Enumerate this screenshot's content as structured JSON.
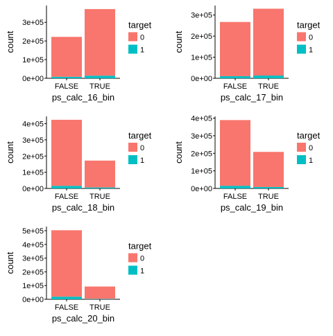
{
  "chart_data": [
    {
      "type": "bar",
      "stacked": true,
      "xlabel": "ps_calc_16_bin",
      "ylabel": "count",
      "categories": [
        "FALSE",
        "TRUE"
      ],
      "series": [
        {
          "name": "0",
          "color": "#F8766D",
          "values": [
            214000,
            357000
          ]
        },
        {
          "name": "1",
          "color": "#00BFC4",
          "values": [
            8000,
            14000
          ]
        }
      ],
      "yticks": [
        0,
        100000,
        200000,
        300000
      ],
      "ytick_labels": [
        "0e+00",
        "1e+05",
        "2e+05",
        "3e+05"
      ],
      "ylim": [
        0,
        390000
      ],
      "legend": {
        "title": "target",
        "position": "right"
      }
    },
    {
      "type": "bar",
      "stacked": true,
      "xlabel": "ps_calc_17_bin",
      "ylabel": "count",
      "categories": [
        "FALSE",
        "TRUE"
      ],
      "series": [
        {
          "name": "0",
          "color": "#F8766D",
          "values": [
            257000,
            317000
          ]
        },
        {
          "name": "1",
          "color": "#00BFC4",
          "values": [
            10000,
            13000
          ]
        }
      ],
      "yticks": [
        0,
        100000,
        200000,
        300000
      ],
      "ytick_labels": [
        "0e+00",
        "1e+05",
        "2e+05",
        "3e+05"
      ],
      "ylim": [
        0,
        345000
      ],
      "legend": {
        "title": "target",
        "position": "right"
      }
    },
    {
      "type": "bar",
      "stacked": true,
      "xlabel": "ps_calc_18_bin",
      "ylabel": "count",
      "categories": [
        "FALSE",
        "TRUE"
      ],
      "series": [
        {
          "name": "0",
          "color": "#F8766D",
          "values": [
            408000,
            166000
          ]
        },
        {
          "name": "1",
          "color": "#00BFC4",
          "values": [
            16000,
            6000
          ]
        }
      ],
      "yticks": [
        0,
        100000,
        200000,
        300000,
        400000
      ],
      "ytick_labels": [
        "0e+00",
        "1e+05",
        "2e+05",
        "3e+05",
        "4e+05"
      ],
      "ylim": [
        0,
        445000
      ],
      "legend": {
        "title": "target",
        "position": "right"
      }
    },
    {
      "type": "bar",
      "stacked": true,
      "xlabel": "ps_calc_19_bin",
      "ylabel": "count",
      "categories": [
        "FALSE",
        "TRUE"
      ],
      "series": [
        {
          "name": "0",
          "color": "#F8766D",
          "values": [
            374000,
            200000
          ]
        },
        {
          "name": "1",
          "color": "#00BFC4",
          "values": [
            15000,
            8000
          ]
        }
      ],
      "yticks": [
        0,
        100000,
        200000,
        300000,
        400000
      ],
      "ytick_labels": [
        "0e+00",
        "1e+05",
        "2e+05",
        "3e+05",
        "4e+05"
      ],
      "ylim": [
        0,
        410000
      ],
      "legend": {
        "title": "target",
        "position": "right"
      }
    },
    {
      "type": "bar",
      "stacked": true,
      "xlabel": "ps_calc_20_bin",
      "ylabel": "count",
      "categories": [
        "FALSE",
        "TRUE"
      ],
      "series": [
        {
          "name": "0",
          "color": "#F8766D",
          "values": [
            484000,
            90000
          ]
        },
        {
          "name": "1",
          "color": "#00BFC4",
          "values": [
            19000,
            3000
          ]
        }
      ],
      "yticks": [
        0,
        100000,
        200000,
        300000,
        400000,
        500000
      ],
      "ytick_labels": [
        "0e+00",
        "1e+05",
        "2e+05",
        "3e+05",
        "4e+05",
        "5e+05"
      ],
      "ylim": [
        0,
        530000
      ],
      "legend": {
        "title": "target",
        "position": "right"
      }
    }
  ]
}
